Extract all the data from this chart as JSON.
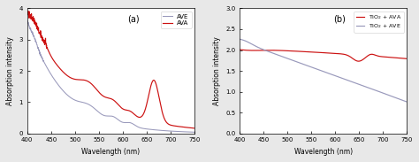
{
  "panel_a": {
    "title": "(a)",
    "xlabel": "Wavelength (nm)",
    "ylabel": "Absorption intensity",
    "xlim": [
      400,
      750
    ],
    "ylim": [
      0,
      4
    ],
    "yticks": [
      0,
      1,
      2,
      3,
      4
    ],
    "xticks": [
      400,
      450,
      500,
      550,
      600,
      650,
      700,
      750
    ],
    "legend": [
      "AVE",
      "AVA"
    ],
    "ave_color": "#9999bb",
    "ava_color": "#cc1111"
  },
  "panel_b": {
    "title": "(b)",
    "xlabel": "Wavelength (nm)",
    "ylabel": "Absorption intensity",
    "xlim": [
      400,
      750
    ],
    "ylim": [
      0,
      3.0
    ],
    "yticks": [
      0.0,
      0.5,
      1.0,
      1.5,
      2.0,
      2.5,
      3.0
    ],
    "xticks": [
      400,
      450,
      500,
      550,
      600,
      650,
      700,
      750
    ],
    "legend": [
      "TiO$_2$ + AVA",
      "TiO$_2$ + AVE"
    ],
    "tio2_ava_color": "#cc1111",
    "tio2_ave_color": "#9999bb"
  },
  "fig_bg": "#e8e8e8",
  "plot_bg": "#ffffff"
}
